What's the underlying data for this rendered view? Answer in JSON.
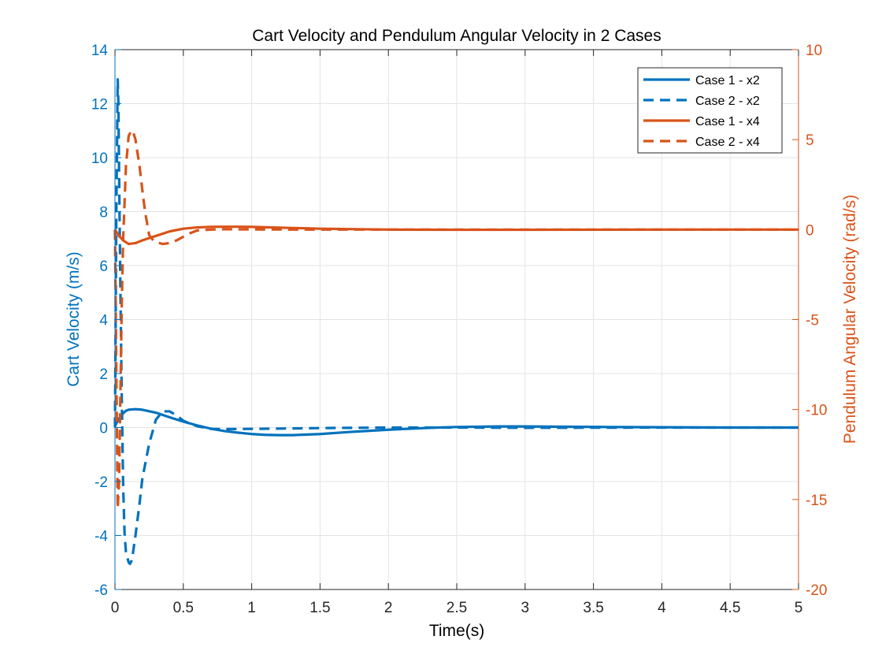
{
  "chart_data": {
    "type": "line",
    "title": "Cart Velocity and Pendulum Angular Velocity in 2 Cases",
    "xlabel": "Time(s)",
    "ylabel_left": "Cart Velocity (m/s)",
    "ylabel_right": "Pendulum Angular Velocity (rad/s)",
    "xlim": [
      0,
      5
    ],
    "ylim_left": [
      -6,
      14
    ],
    "ylim_right": [
      -20,
      10
    ],
    "xticks": [
      0,
      0.5,
      1,
      1.5,
      2,
      2.5,
      3,
      3.5,
      4,
      4.5,
      5
    ],
    "xtick_labels": [
      "0",
      "0.5",
      "1",
      "1.5",
      "2",
      "2.5",
      "3",
      "3.5",
      "4",
      "4.5",
      "5"
    ],
    "yticks_left": [
      -6,
      -4,
      -2,
      0,
      2,
      4,
      6,
      8,
      10,
      12,
      14
    ],
    "ytick_labels_left": [
      "-6",
      "-4",
      "-2",
      "0",
      "2",
      "4",
      "6",
      "8",
      "10",
      "12",
      "14"
    ],
    "yticks_right": [
      -20,
      -15,
      -10,
      -5,
      0,
      5,
      10
    ],
    "ytick_labels_right": [
      "-20",
      "-15",
      "-10",
      "-5",
      "0",
      "5",
      "10"
    ],
    "grid": true,
    "legend_position": "top-right",
    "colors": {
      "left_axis": "#0072BD",
      "right_axis": "#D95319"
    },
    "series": [
      {
        "name": "Case 1 - x2",
        "axis": "left",
        "color": "#0072BD",
        "dash": "solid",
        "x": [
          0,
          0.02,
          0.05,
          0.08,
          0.1,
          0.15,
          0.2,
          0.3,
          0.4,
          0.5,
          0.6,
          0.7,
          0.8,
          0.9,
          1.0,
          1.1,
          1.2,
          1.3,
          1.5,
          1.7,
          2.0,
          2.3,
          2.5,
          2.8,
          3.0,
          3.3,
          3.6,
          4.0,
          4.5,
          5.0
        ],
        "y": [
          0.05,
          0.25,
          0.48,
          0.62,
          0.66,
          0.68,
          0.66,
          0.55,
          0.38,
          0.22,
          0.08,
          -0.04,
          -0.13,
          -0.19,
          -0.24,
          -0.27,
          -0.28,
          -0.28,
          -0.24,
          -0.17,
          -0.08,
          -0.01,
          0.02,
          0.04,
          0.04,
          0.03,
          0.02,
          0.01,
          0.0,
          0.0
        ]
      },
      {
        "name": "Case 2 - x2",
        "axis": "left",
        "color": "#0072BD",
        "dash": "dashed",
        "x": [
          0,
          0.01,
          0.02,
          0.025,
          0.03,
          0.04,
          0.05,
          0.06,
          0.07,
          0.08,
          0.1,
          0.11,
          0.12,
          0.13,
          0.15,
          0.18,
          0.2,
          0.25,
          0.3,
          0.35,
          0.4,
          0.45,
          0.5,
          0.6,
          0.7,
          0.8,
          1.0,
          1.5,
          2.0,
          2.5,
          3.0,
          4.0,
          5.0
        ],
        "y": [
          0.0,
          8.0,
          12.9,
          12.0,
          9.5,
          5.0,
          1.0,
          -2.2,
          -3.9,
          -4.6,
          -5.0,
          -5.05,
          -4.95,
          -4.7,
          -4.0,
          -2.8,
          -1.9,
          -0.6,
          0.3,
          0.6,
          0.6,
          0.45,
          0.25,
          0.05,
          -0.05,
          -0.06,
          -0.05,
          -0.02,
          0.0,
          0.0,
          -0.01,
          0.0,
          0.0
        ]
      },
      {
        "name": "Case 1 - x4",
        "axis": "right",
        "color": "#D95319",
        "dash": "solid",
        "x": [
          0,
          0.03,
          0.06,
          0.1,
          0.15,
          0.2,
          0.3,
          0.4,
          0.5,
          0.6,
          0.7,
          0.8,
          0.9,
          1.0,
          1.1,
          1.2,
          1.5,
          2.0,
          2.5,
          3.0,
          4.0,
          5.0
        ],
        "y": [
          0.0,
          -0.35,
          -0.6,
          -0.8,
          -0.75,
          -0.6,
          -0.35,
          -0.1,
          0.05,
          0.12,
          0.15,
          0.16,
          0.16,
          0.15,
          0.13,
          0.11,
          0.05,
          0.0,
          -0.01,
          -0.01,
          0.0,
          0.0
        ]
      },
      {
        "name": "Case 2 - x4",
        "axis": "right",
        "color": "#D95319",
        "dash": "dashed",
        "x": [
          0,
          0.01,
          0.02,
          0.03,
          0.04,
          0.05,
          0.06,
          0.08,
          0.1,
          0.12,
          0.13,
          0.15,
          0.18,
          0.2,
          0.22,
          0.25,
          0.28,
          0.3,
          0.35,
          0.4,
          0.45,
          0.5,
          0.55,
          0.6,
          0.7,
          0.8,
          1.0,
          1.5,
          2.0,
          3.0,
          5.0
        ],
        "y": [
          0.0,
          -8.0,
          -15.5,
          -14.0,
          -9.0,
          -4.0,
          -0.5,
          3.5,
          5.2,
          5.5,
          5.5,
          5.0,
          3.5,
          2.2,
          1.0,
          -0.3,
          -0.6,
          -0.7,
          -0.8,
          -0.75,
          -0.6,
          -0.4,
          -0.2,
          -0.05,
          0.0,
          0.02,
          0.01,
          0.0,
          0.0,
          0.0,
          0.0
        ]
      }
    ]
  }
}
